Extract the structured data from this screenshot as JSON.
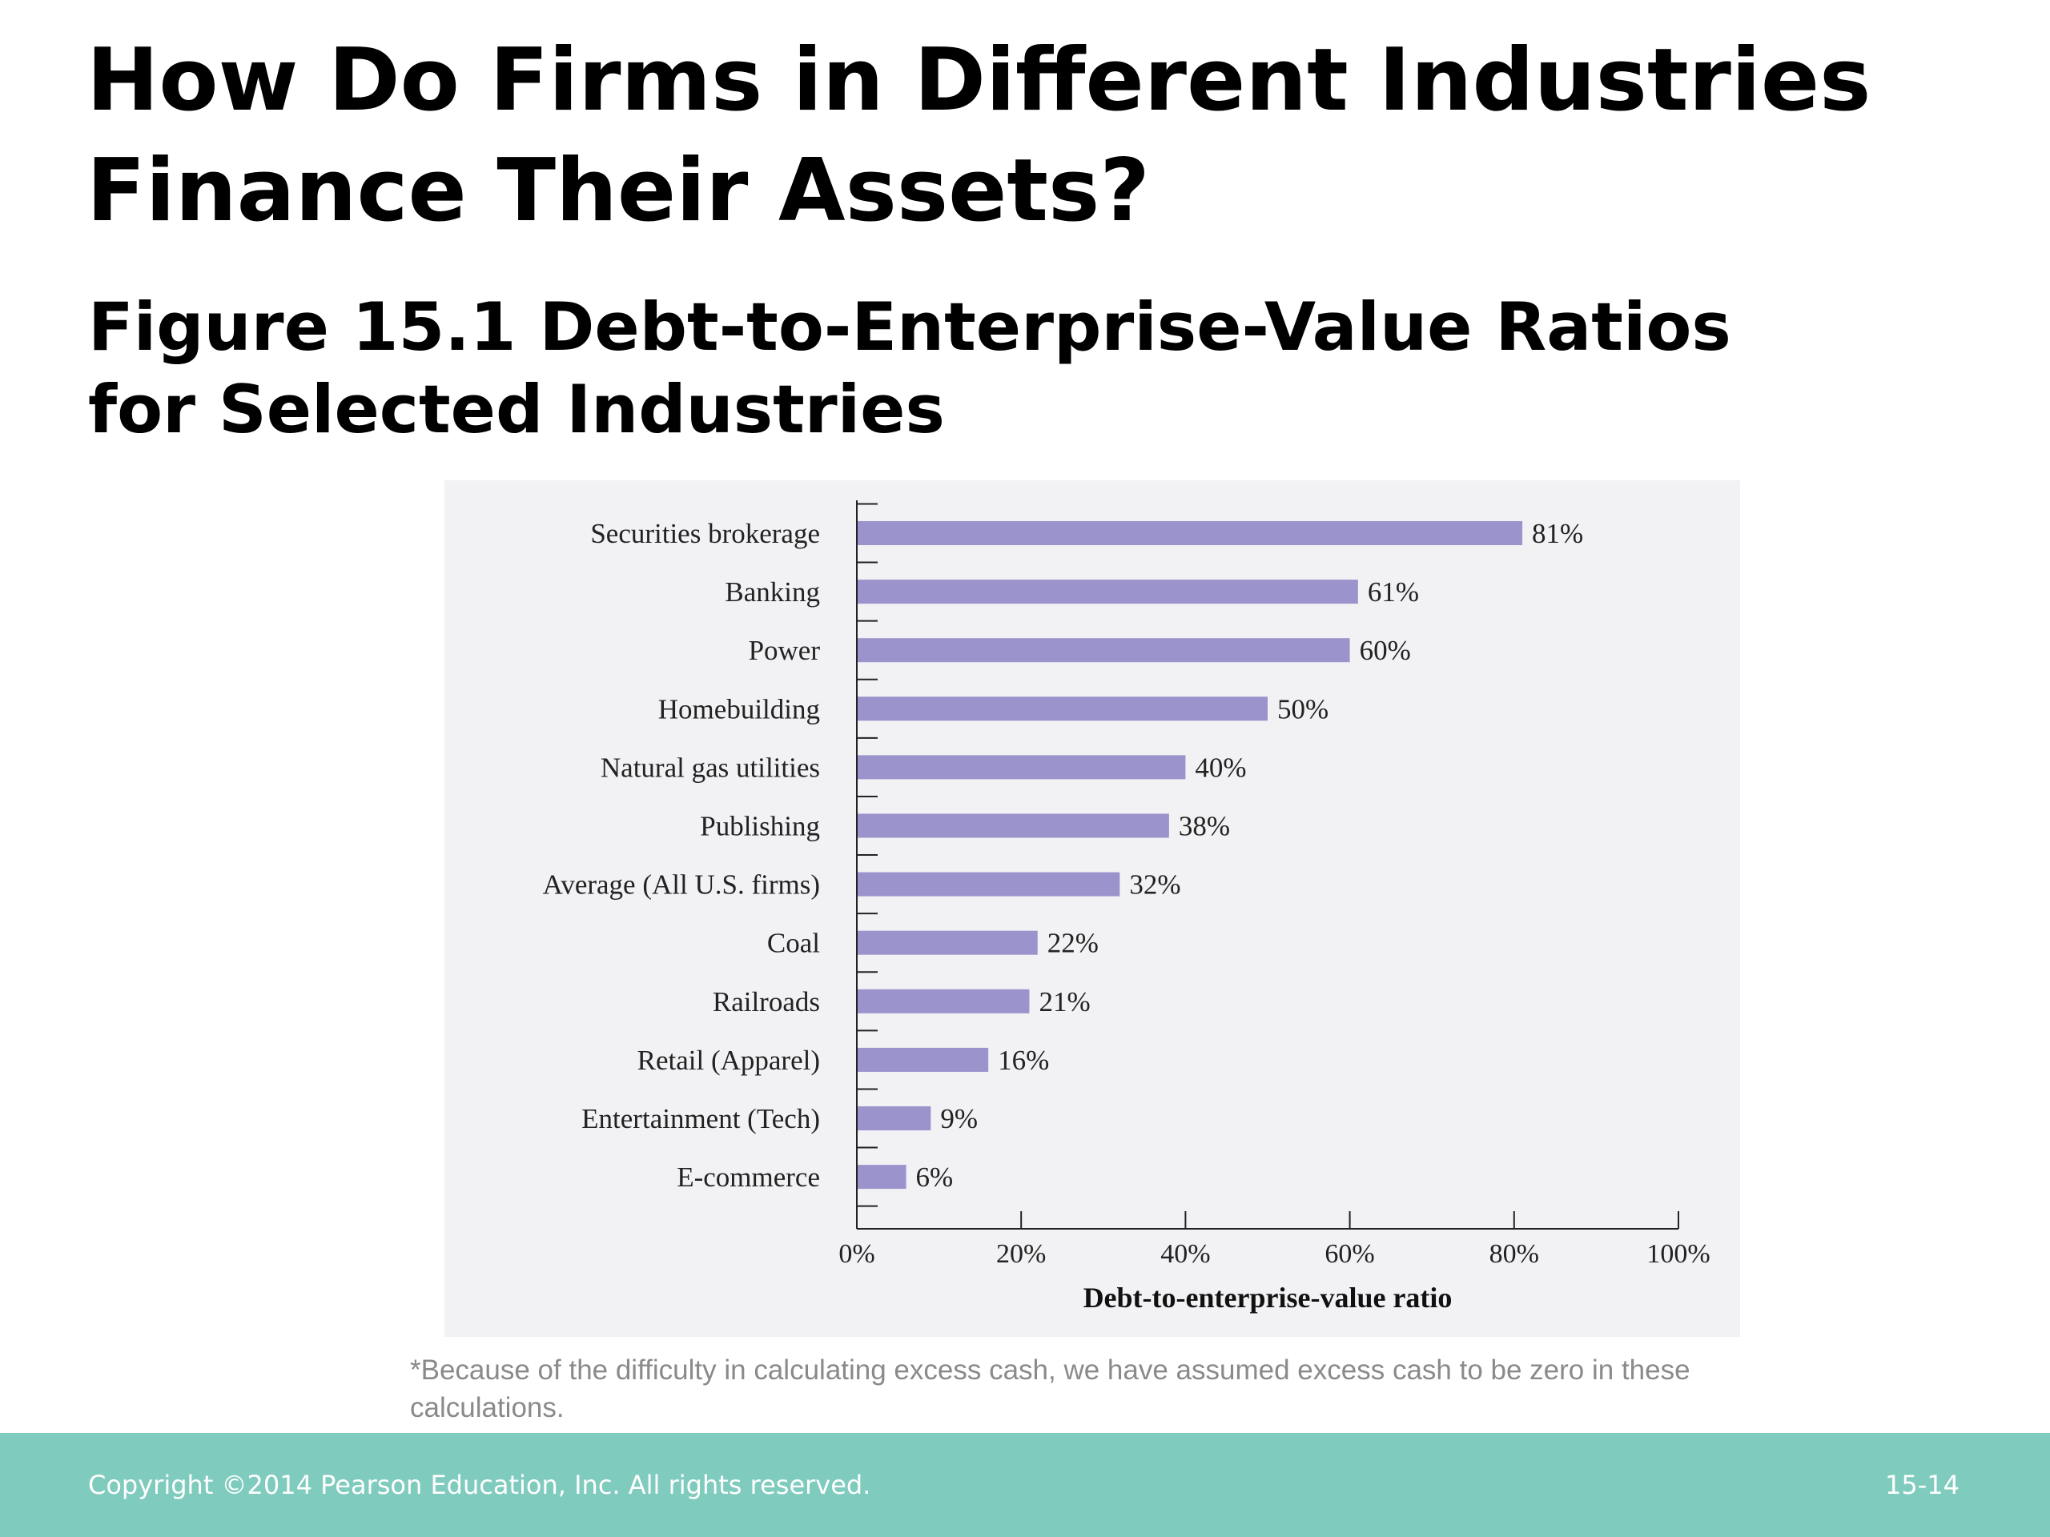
{
  "slide": {
    "title": "How Do Firms in Different Industries\nFinance Their Assets?",
    "figure_title": "Figure 15.1  Debt-to-Enterprise-Value Ratios\nfor Selected Industries",
    "footnote": "*Because of the difficulty in calculating excess cash, we have assumed excess cash to be zero in these calculations.",
    "copyright": "Copyright ©2014 Pearson Education, Inc. All rights reserved.",
    "page_number": "15-14"
  },
  "colors": {
    "bar": "#9b94cc",
    "panel_background": "#f2f2f4",
    "footer_bar": "#7fcbbd"
  },
  "chart_data": {
    "type": "bar",
    "orientation": "horizontal",
    "categories": [
      "Securities brokerage",
      "Banking",
      "Power",
      "Homebuilding",
      "Natural gas utilities",
      "Publishing",
      "Average (All U.S. firms)",
      "Coal",
      "Railroads",
      "Retail (Apparel)",
      "Entertainment (Tech)",
      "E-commerce"
    ],
    "values": [
      81,
      61,
      60,
      50,
      40,
      38,
      32,
      22,
      21,
      16,
      9,
      6
    ],
    "value_labels": [
      "81%",
      "61%",
      "60%",
      "50%",
      "40%",
      "38%",
      "32%",
      "22%",
      "21%",
      "16%",
      "9%",
      "6%"
    ],
    "xlabel": "Debt-to-enterprise-value ratio",
    "ylabel": "",
    "xlim": [
      0,
      100
    ],
    "x_ticks": [
      0,
      20,
      40,
      60,
      80,
      100
    ],
    "x_tick_labels": [
      "0%",
      "20%",
      "40%",
      "60%",
      "80%",
      "100%"
    ],
    "grid": false,
    "legend": "none"
  }
}
